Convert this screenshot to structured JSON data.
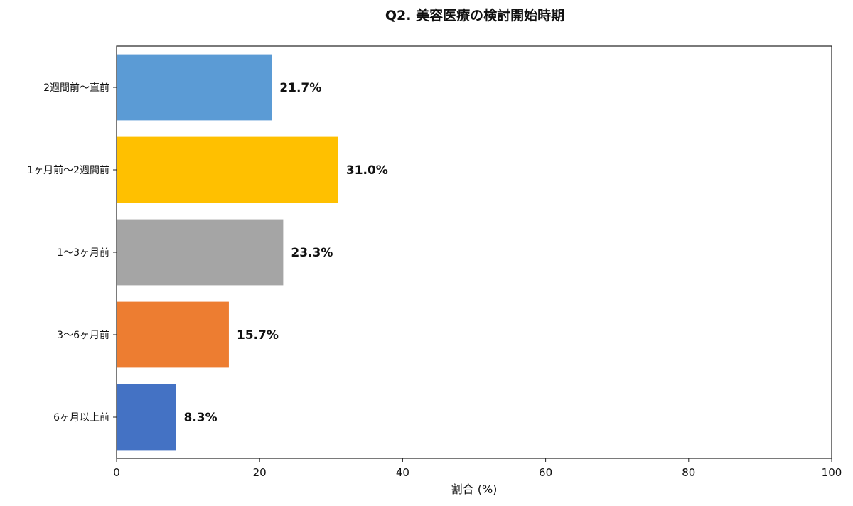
{
  "chart_data": {
    "type": "bar",
    "orientation": "horizontal",
    "title": "Q2. 美容医療の検討開始時期",
    "xlabel": "割合 (%)",
    "ylabel": "",
    "xlim": [
      0,
      100
    ],
    "xticks": [
      "0",
      "20",
      "40",
      "60",
      "80",
      "100"
    ],
    "categories": [
      "2週間前〜直前",
      "1ヶ月前〜2週間前",
      "1〜3ヶ月前",
      "3〜6ヶ月前",
      "6ヶ月以上前"
    ],
    "values": [
      21.7,
      31.0,
      23.3,
      15.7,
      8.3
    ],
    "data_labels": [
      "21.7%",
      "31.0%",
      "23.3%",
      "15.7%",
      "8.3%"
    ],
    "colors": [
      "#5B9BD5",
      "#FFC000",
      "#A5A5A5",
      "#ED7D31",
      "#4472C4"
    ],
    "grid": false,
    "legend": "none"
  }
}
